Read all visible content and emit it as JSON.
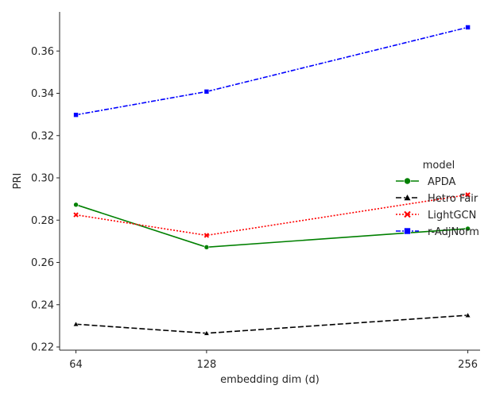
{
  "chart_data": {
    "type": "line",
    "title": "",
    "xlabel": "embedding dim (d)",
    "ylabel": "PRI",
    "x": [
      64,
      128,
      256
    ],
    "x_ticks": [
      "64",
      "128",
      "256"
    ],
    "xlim": [
      56,
      262
    ],
    "ylim": [
      0.2185,
      0.3785
    ],
    "y_ticks": [
      "0.22",
      "0.24",
      "0.26",
      "0.28",
      "0.30",
      "0.32",
      "0.34",
      "0.36"
    ],
    "grid": false,
    "legend_title": "model",
    "legend_position": "right",
    "series": [
      {
        "name": "APDA",
        "values": [
          0.2873,
          0.2672,
          0.276
        ],
        "color": "#008000",
        "marker": "circle",
        "dash": "solid"
      },
      {
        "name": "Hetro Fair",
        "values": [
          0.2308,
          0.2265,
          0.235
        ],
        "color": "#000000",
        "marker": "triangle",
        "dash": "dashed"
      },
      {
        "name": "LightGCN",
        "values": [
          0.2825,
          0.2728,
          0.292
        ],
        "color": "#ff0000",
        "marker": "x",
        "dash": "dotted"
      },
      {
        "name": "r-AdjNorm",
        "values": [
          0.3298,
          0.3408,
          0.3712
        ],
        "color": "#0000ff",
        "marker": "square",
        "dash": "dashdot"
      }
    ]
  }
}
